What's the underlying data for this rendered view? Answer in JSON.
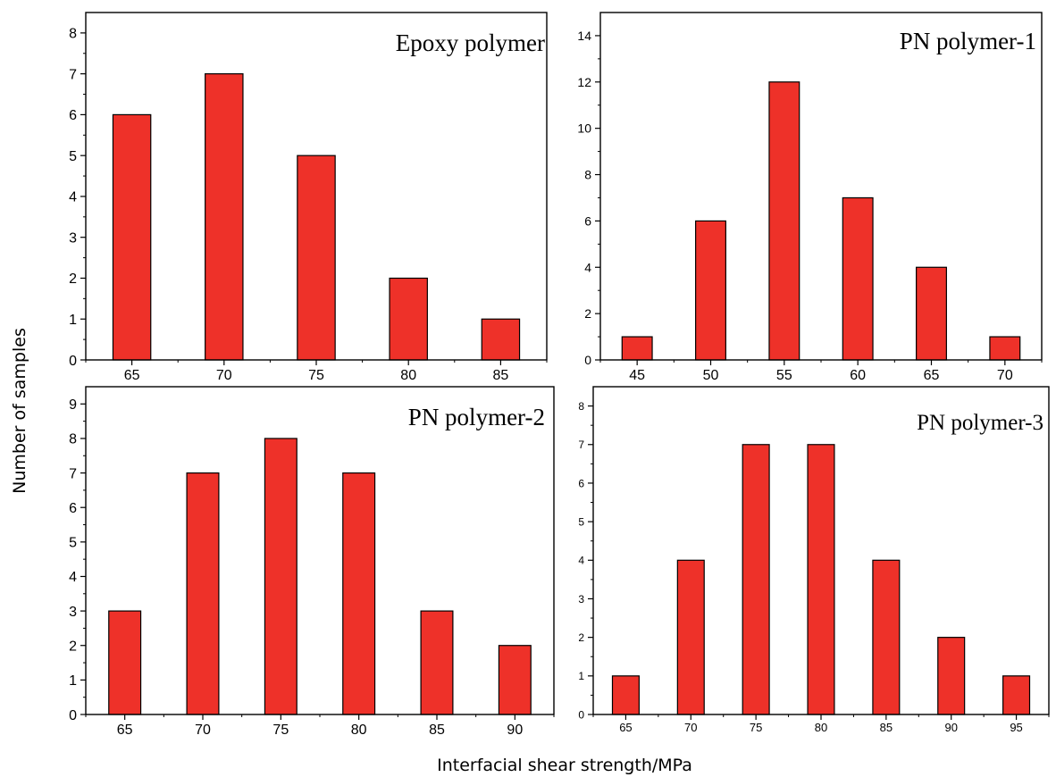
{
  "chart_data": [
    {
      "type": "bar",
      "title": "Epoxy polymer",
      "categories": [
        "65",
        "70",
        "75",
        "80",
        "85"
      ],
      "values": [
        6,
        7,
        5,
        2,
        1
      ],
      "ylim": [
        0,
        8.5
      ],
      "yticks": [
        0,
        1,
        2,
        3,
        4,
        5,
        6,
        7,
        8
      ],
      "bar_color": "#ee3129",
      "grid": false
    },
    {
      "type": "bar",
      "title": "PN polymer-1",
      "categories": [
        "45",
        "50",
        "55",
        "60",
        "65",
        "70"
      ],
      "values": [
        1,
        6,
        12,
        7,
        4,
        1
      ],
      "ylim": [
        0,
        15
      ],
      "yticks": [
        0,
        2,
        4,
        6,
        8,
        10,
        12,
        14
      ],
      "bar_color": "#ee3129",
      "grid": false
    },
    {
      "type": "bar",
      "title": "PN polymer-2",
      "categories": [
        "65",
        "70",
        "75",
        "80",
        "85",
        "90"
      ],
      "values": [
        3,
        7,
        8,
        7,
        3,
        2
      ],
      "ylim": [
        0,
        9.5
      ],
      "yticks": [
        0,
        1,
        2,
        3,
        4,
        5,
        6,
        7,
        8,
        9
      ],
      "bar_color": "#ee3129",
      "grid": false
    },
    {
      "type": "bar",
      "title": "PN polymer-3",
      "categories": [
        "65",
        "70",
        "75",
        "80",
        "85",
        "90",
        "95"
      ],
      "values": [
        1,
        4,
        7,
        7,
        4,
        2,
        1
      ],
      "ylim": [
        0,
        8.5
      ],
      "yticks": [
        0,
        1,
        2,
        3,
        4,
        5,
        6,
        7,
        8
      ],
      "bar_color": "#ee3129",
      "grid": false
    }
  ],
  "shared": {
    "ylabel": "Number of samples",
    "xlabel": "Interfacial shear strength/MPa"
  }
}
